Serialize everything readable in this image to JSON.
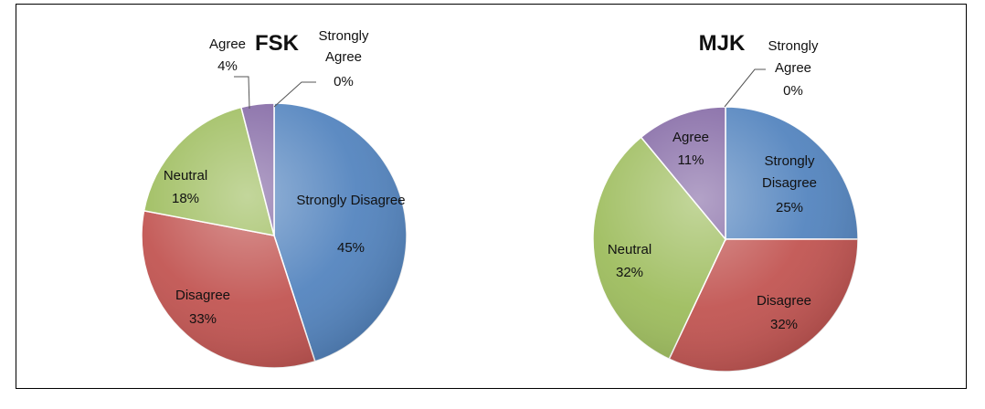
{
  "chart_data": [
    {
      "type": "pie",
      "title": "FSK",
      "slices": [
        {
          "label": "Strongly Disagree",
          "pct_label": "45%",
          "value": 45,
          "color": "#4F81BD"
        },
        {
          "label": "Disagree",
          "pct_label": "33%",
          "value": 33,
          "color": "#C0504D"
        },
        {
          "label": "Neutral",
          "pct_label": "18%",
          "value": 18,
          "color": "#9BBB59"
        },
        {
          "label": "Agree",
          "pct_label": "4%",
          "value": 4,
          "color": "#8064A2"
        },
        {
          "label": "Strongly Agree",
          "pct_label": "0%",
          "value": 0,
          "color": "#4BACC6"
        }
      ]
    },
    {
      "type": "pie",
      "title": "MJK",
      "slices": [
        {
          "label": "Strongly Disagree",
          "pct_label": "25%",
          "value": 25,
          "color": "#4F81BD"
        },
        {
          "label": "Disagree",
          "pct_label": "32%",
          "value": 32,
          "color": "#C0504D"
        },
        {
          "label": "Neutral",
          "pct_label": "32%",
          "value": 32,
          "color": "#9BBB59"
        },
        {
          "label": "Agree",
          "pct_label": "11%",
          "value": 11,
          "color": "#8064A2"
        },
        {
          "label": "Strongly Agree",
          "pct_label": "0%",
          "value": 0,
          "color": "#4BACC6"
        }
      ]
    }
  ]
}
